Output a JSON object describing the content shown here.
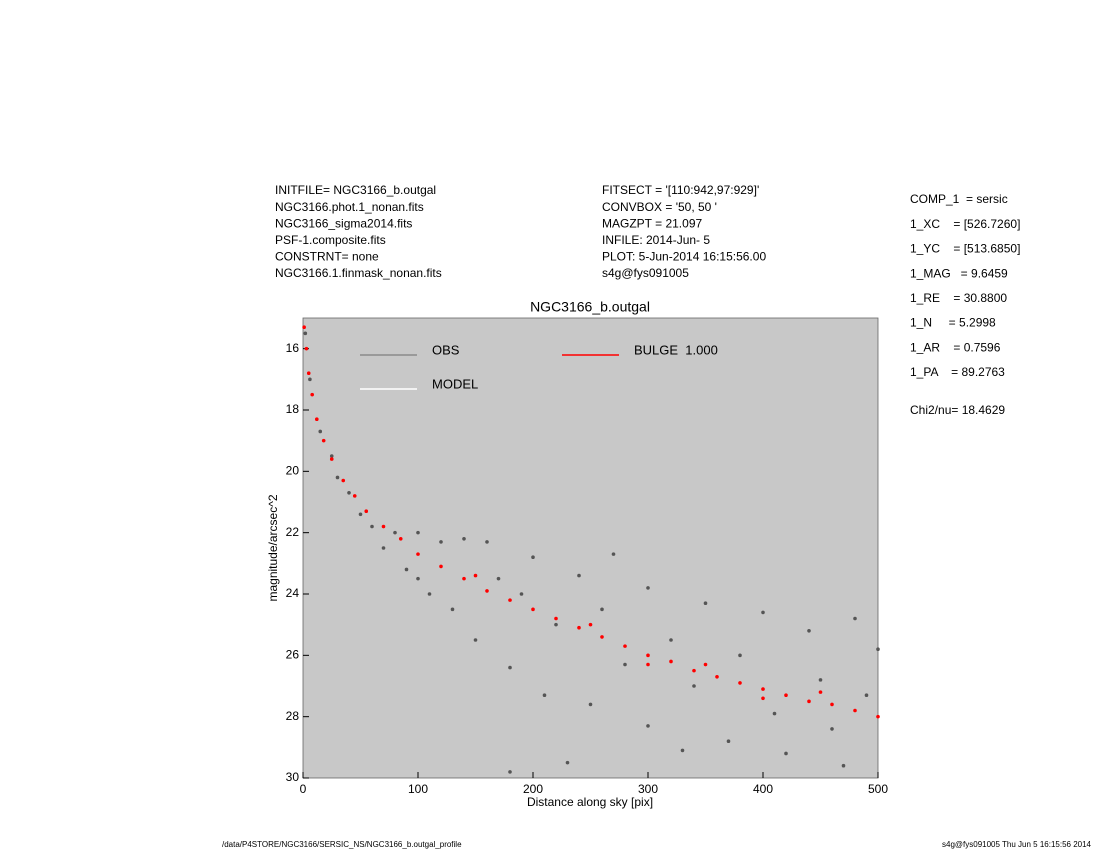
{
  "header": {
    "left": [
      "INITFILE= NGC3166_b.outgal",
      "NGC3166.phot.1_nonan.fits",
      "NGC3166_sigma2014.fits",
      "PSF-1.composite.fits",
      "CONSTRNT= none",
      "NGC3166.1.finmask_nonan.fits"
    ],
    "middle": [
      "FITSECT = '[110:942,97:929]'",
      "CONVBOX = '50, 50  '",
      "MAGZPT  =             21.097",
      "INFILE: 2014-Jun- 5",
      "PLOT:  5-Jun-2014 16:15:56.00",
      "s4g@fys091005"
    ],
    "panel": [
      "COMP_1  = sersic",
      "1_XC    = [526.7260]",
      "1_YC    = [513.6850]",
      "1_MAG   = 9.6459",
      "1_RE    = 30.8800",
      "1_N     = 5.2998",
      "1_AR    = 0.7596",
      "1_PA    = 89.2763"
    ],
    "chi2": "Chi2/nu=     18.4629"
  },
  "chart_data": {
    "type": "scatter",
    "title": "NGC3166_b.outgal",
    "x_label": "Distance along sky [pix]",
    "y_label": "magnitude/arcsec^2",
    "xlim": [
      0,
      500
    ],
    "xticks": [
      0,
      100,
      200,
      300,
      400,
      500
    ],
    "ylim": [
      30,
      15
    ],
    "yticks": [
      16,
      18,
      20,
      22,
      24,
      26,
      28,
      30
    ],
    "background": "#c8c8c8",
    "series": [
      {
        "name": "OBS",
        "color": "#555555",
        "legend_color": "#8a8a8a",
        "x": [
          2,
          6,
          15,
          25,
          30,
          40,
          50,
          60,
          70,
          80,
          90,
          100,
          100,
          110,
          120,
          130,
          140,
          150,
          160,
          170,
          180,
          190,
          200,
          210,
          220,
          240,
          250,
          260,
          280,
          300,
          300,
          320,
          340,
          350,
          370,
          380,
          400,
          410,
          420,
          440,
          450,
          460,
          480,
          490,
          500,
          230,
          180,
          330,
          470,
          270
        ],
        "values": [
          15.5,
          17,
          18.7,
          19.5,
          20.2,
          20.7,
          21.4,
          21.8,
          22.5,
          22.0,
          23.2,
          22.0,
          23.5,
          24.0,
          22.3,
          24.5,
          22.2,
          25.5,
          22.3,
          23.5,
          26.4,
          24.0,
          22.8,
          27.3,
          25.0,
          23.4,
          27.6,
          24.5,
          26.3,
          23.8,
          28.3,
          25.5,
          27.0,
          24.3,
          28.8,
          26.0,
          24.6,
          27.9,
          29.2,
          25.2,
          26.8,
          28.4,
          24.8,
          27.3,
          25.8,
          29.5,
          29.8,
          29.1,
          29.6,
          22.7
        ]
      },
      {
        "name": "MODEL",
        "color": "#ffffff",
        "legend_color": "#ffffff",
        "x": [],
        "values": []
      },
      {
        "name": "BULGE  1.000",
        "color": "#ff0000",
        "legend_color": "#ff0000",
        "x": [
          1,
          3,
          5,
          8,
          12,
          18,
          25,
          35,
          45,
          55,
          70,
          85,
          100,
          120,
          140,
          160,
          180,
          200,
          220,
          240,
          260,
          280,
          300,
          320,
          340,
          360,
          380,
          400,
          420,
          440,
          460,
          480,
          500,
          150,
          250,
          350,
          450,
          300,
          400
        ],
        "values": [
          15.3,
          16,
          16.8,
          17.5,
          18.3,
          19,
          19.6,
          20.3,
          20.8,
          21.3,
          21.8,
          22.2,
          22.7,
          23.1,
          23.5,
          23.9,
          24.2,
          24.5,
          24.8,
          25.1,
          25.4,
          25.7,
          26,
          26.2,
          26.5,
          26.7,
          26.9,
          27.1,
          27.3,
          27.5,
          27.6,
          27.8,
          28,
          23.4,
          25.0,
          26.3,
          27.2,
          26.3,
          27.4
        ]
      }
    ]
  },
  "footer": {
    "left": "/data/P4STORE/NGC3166/SERSIC_NS/NGC3166_b.outgal_profile",
    "right": "s4g@fys091005  Thu Jun  5 16:15:56 2014"
  }
}
